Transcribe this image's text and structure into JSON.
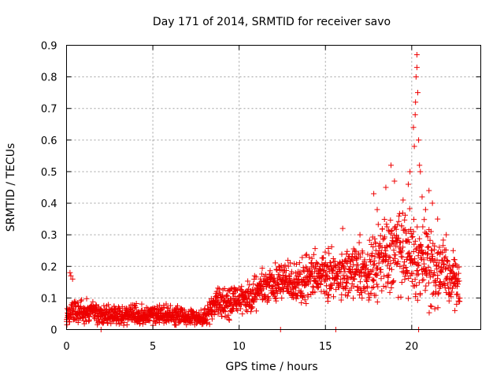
{
  "chart_data": {
    "type": "scatter",
    "title": "Day 171 of 2014, SRMTID for receiver savo",
    "xlabel": "GPS time / hours",
    "ylabel": "SRMTID / TECUs",
    "xlim": [
      0,
      24
    ],
    "ylim": [
      0,
      0.9
    ],
    "xticks": [
      "0",
      "5",
      "10",
      "15",
      "20"
    ],
    "yticks": [
      "0",
      "0.1",
      "0.2",
      "0.3",
      "0.4",
      "0.5",
      "0.6",
      "0.7",
      "0.8",
      "0.9"
    ],
    "grid": true,
    "marker": "+",
    "color": "#ee0000",
    "series": [
      {
        "name": "savo",
        "profile": {
          "hours": [
            0.0,
            0.3,
            1.0,
            2.0,
            3.0,
            4.0,
            5.0,
            6.0,
            7.0,
            7.8,
            8.2,
            8.6,
            9.5,
            10.5,
            11.5,
            12.5,
            13.5,
            14.5,
            15.5,
            16.5,
            17.5,
            18.5,
            19.5,
            20.3,
            21.0,
            22.0,
            22.8
          ],
          "median": [
            0.045,
            0.06,
            0.055,
            0.05,
            0.045,
            0.045,
            0.045,
            0.045,
            0.04,
            0.035,
            0.05,
            0.085,
            0.085,
            0.11,
            0.13,
            0.16,
            0.15,
            0.17,
            0.17,
            0.19,
            0.18,
            0.24,
            0.24,
            0.23,
            0.21,
            0.17,
            0.15
          ],
          "spread": [
            0.015,
            0.03,
            0.02,
            0.018,
            0.018,
            0.018,
            0.018,
            0.018,
            0.015,
            0.012,
            0.02,
            0.025,
            0.03,
            0.03,
            0.035,
            0.04,
            0.04,
            0.045,
            0.045,
            0.05,
            0.05,
            0.08,
            0.08,
            0.09,
            0.08,
            0.05,
            0.04
          ]
        },
        "notable_points": [
          {
            "x": 0.2,
            "y": 0.18
          },
          {
            "x": 0.25,
            "y": 0.17
          },
          {
            "x": 0.35,
            "y": 0.16
          },
          {
            "x": 12.4,
            "y": 0.0
          },
          {
            "x": 15.6,
            "y": 0.0
          },
          {
            "x": 16.0,
            "y": 0.32
          },
          {
            "x": 17.0,
            "y": 0.3
          },
          {
            "x": 17.8,
            "y": 0.43
          },
          {
            "x": 18.0,
            "y": 0.38
          },
          {
            "x": 18.5,
            "y": 0.45
          },
          {
            "x": 18.8,
            "y": 0.52
          },
          {
            "x": 19.0,
            "y": 0.47
          },
          {
            "x": 19.5,
            "y": 0.41
          },
          {
            "x": 19.8,
            "y": 0.46
          },
          {
            "x": 19.9,
            "y": 0.5
          },
          {
            "x": 20.1,
            "y": 0.64
          },
          {
            "x": 20.15,
            "y": 0.58
          },
          {
            "x": 20.2,
            "y": 0.68
          },
          {
            "x": 20.22,
            "y": 0.72
          },
          {
            "x": 20.25,
            "y": 0.8
          },
          {
            "x": 20.3,
            "y": 0.83
          },
          {
            "x": 20.3,
            "y": 0.87
          },
          {
            "x": 20.35,
            "y": 0.75
          },
          {
            "x": 20.4,
            "y": 0.6
          },
          {
            "x": 20.45,
            "y": 0.52
          },
          {
            "x": 20.5,
            "y": 0.5
          },
          {
            "x": 20.6,
            "y": 0.42
          },
          {
            "x": 20.8,
            "y": 0.38
          },
          {
            "x": 21.0,
            "y": 0.44
          },
          {
            "x": 21.2,
            "y": 0.4
          },
          {
            "x": 21.5,
            "y": 0.35
          },
          {
            "x": 22.0,
            "y": 0.3
          },
          {
            "x": 22.4,
            "y": 0.25
          },
          {
            "x": 22.5,
            "y": 0.06
          },
          {
            "x": 22.6,
            "y": 0.08
          },
          {
            "x": 20.4,
            "y": 0.0
          },
          {
            "x": 2.0,
            "y": 0.0
          }
        ]
      }
    ]
  }
}
